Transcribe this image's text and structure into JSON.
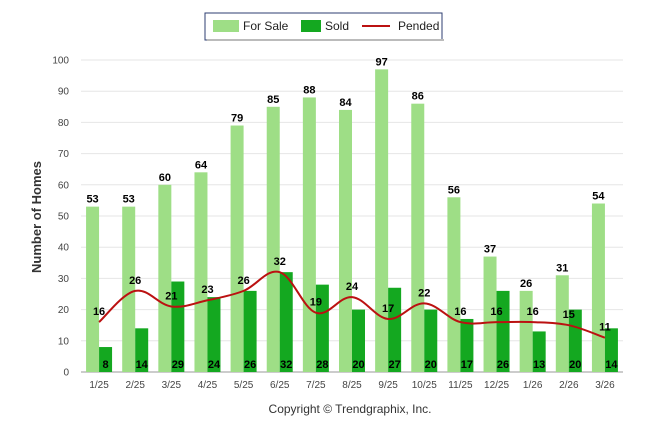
{
  "chart_data": {
    "type": "bar",
    "ylabel": "Number of Homes",
    "xlabel": "",
    "ylim": [
      0,
      100
    ],
    "yticks": [
      0,
      10,
      20,
      30,
      40,
      50,
      60,
      70,
      80,
      90,
      100
    ],
    "grid": true,
    "legend_position": "top-center",
    "credit": "Copyright © Trendgraphix, Inc.",
    "categories": [
      "1/25",
      "2/25",
      "3/25",
      "4/25",
      "5/25",
      "6/25",
      "7/25",
      "8/25",
      "9/25",
      "10/25",
      "11/25",
      "12/25",
      "1/26",
      "2/26",
      "3/26"
    ],
    "series": [
      {
        "name": "For Sale",
        "kind": "bar",
        "color": "#9ede86",
        "values": [
          53,
          53,
          60,
          64,
          79,
          85,
          88,
          84,
          97,
          86,
          56,
          37,
          26,
          31,
          54
        ]
      },
      {
        "name": "Sold",
        "kind": "bar",
        "color": "#14a820",
        "values": [
          8,
          14,
          29,
          24,
          26,
          32,
          28,
          20,
          27,
          20,
          17,
          26,
          13,
          20,
          14
        ]
      },
      {
        "name": "Pended",
        "kind": "line",
        "color": "#bb1111",
        "values": [
          16,
          26,
          21,
          23,
          26,
          32,
          19,
          24,
          17,
          22,
          16,
          16,
          16,
          15,
          11
        ]
      }
    ]
  }
}
